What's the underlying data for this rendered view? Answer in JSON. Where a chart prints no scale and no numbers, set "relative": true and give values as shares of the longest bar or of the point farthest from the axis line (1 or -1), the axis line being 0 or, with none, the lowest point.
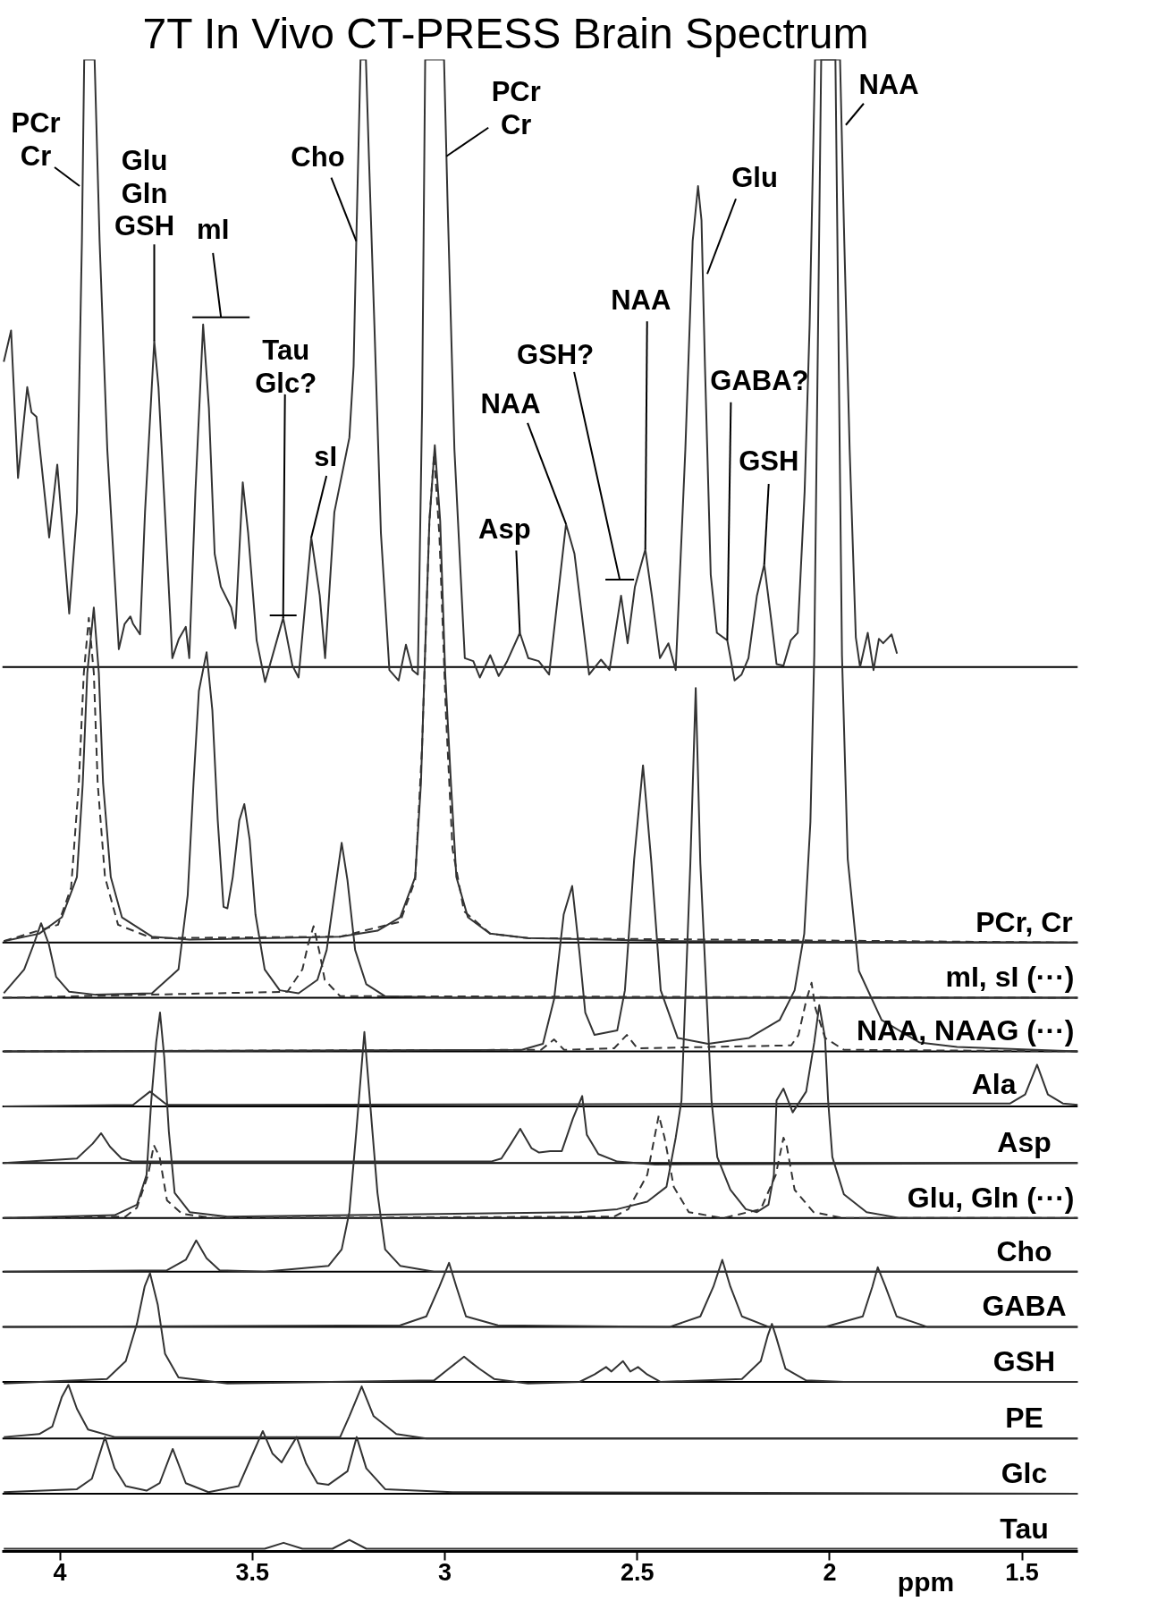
{
  "chart_data": {
    "type": "line",
    "title": "7T In Vivo CT-PRESS Brain Spectrum",
    "xlabel": "ppm",
    "relative": true,
    "xlim": [
      4.15,
      1.355
    ],
    "xticks": [
      4,
      3.5,
      3,
      2.5,
      2,
      1.5
    ],
    "series": [
      {
        "color": "#333333",
        "x": [
          4.146,
          4.127,
          4.109,
          4.085,
          4.074,
          4.061,
          4.028,
          4.007,
          3.976,
          3.956,
          3.943,
          3.937,
          3.91,
          3.897,
          3.877,
          3.847,
          3.832,
          3.817,
          3.81,
          3.792,
          3.779,
          3.755,
          3.744,
          3.73,
          3.708,
          3.691,
          3.673,
          3.664,
          3.648,
          3.628,
          3.613,
          3.598,
          3.582,
          3.555,
          3.544,
          3.525,
          3.511,
          3.489,
          3.467,
          3.42,
          3.396,
          3.38,
          3.347,
          3.325,
          3.311,
          3.287,
          3.248,
          3.237,
          3.23,
          3.219,
          3.205,
          3.197,
          3.183,
          3.166,
          3.144,
          3.12,
          3.101,
          3.084,
          3.07,
          3.059,
          3.051,
          3.002,
          2.993,
          2.975,
          2.948,
          2.926,
          2.909,
          2.882,
          2.86,
          2.838,
          2.805,
          2.783,
          2.756,
          2.729,
          2.685,
          2.663,
          2.625,
          2.594,
          2.572,
          2.542,
          2.525,
          2.506,
          2.479,
          2.462,
          2.441,
          2.419,
          2.4,
          2.375,
          2.356,
          2.342,
          2.333,
          2.324,
          2.309,
          2.293,
          2.266,
          2.247,
          2.229,
          2.211,
          2.189,
          2.17,
          2.153,
          2.138,
          2.12,
          2.101,
          2.083,
          2.065,
          2.052,
          2.038,
          1.973,
          1.962,
          1.948,
          1.932,
          1.921,
          1.901,
          1.886,
          1.872,
          1.861,
          1.839,
          1.825
        ],
        "values": [
          0.797,
          0.818,
          0.719,
          0.78,
          0.763,
          0.76,
          0.679,
          0.728,
          0.628,
          0.696,
          0.878,
          1,
          1,
          0.878,
          0.738,
          0.604,
          0.621,
          0.626,
          0.621,
          0.614,
          0.696,
          0.811,
          0.78,
          0.71,
          0.598,
          0.611,
          0.619,
          0.598,
          0.71,
          0.822,
          0.766,
          0.668,
          0.646,
          0.632,
          0.618,
          0.716,
          0.682,
          0.61,
          0.582,
          0.625,
          0.593,
          0.585,
          0.679,
          0.64,
          0.598,
          0.696,
          0.746,
          0.794,
          0.878,
          1,
          1,
          0.933,
          0.822,
          0.682,
          0.59,
          0.583,
          0.607,
          0.59,
          0.587,
          0.766,
          1,
          1,
          0.906,
          0.738,
          0.598,
          0.596,
          0.585,
          0.6,
          0.586,
          0.596,
          0.615,
          0.598,
          0.596,
          0.587,
          0.688,
          0.668,
          0.587,
          0.597,
          0.59,
          0.64,
          0.608,
          0.646,
          0.671,
          0.64,
          0.598,
          0.608,
          0.59,
          0.738,
          0.878,
          0.915,
          0.892,
          0.794,
          0.654,
          0.615,
          0.61,
          0.583,
          0.587,
          0.598,
          0.64,
          0.661,
          0.626,
          0.594,
          0.593,
          0.61,
          0.615,
          0.71,
          0.822,
          1,
          1,
          0.878,
          0.738,
          0.612,
          0.592,
          0.615,
          0.59,
          0.611,
          0.608,
          0.614,
          0.601
        ]
      },
      {
        "name": "PCr, Cr",
        "color": "#333333",
        "x": [
          4.146,
          4.054,
          3.995,
          3.956,
          3.941,
          3.929,
          3.912,
          3.899,
          3.888,
          3.868,
          3.839,
          3.761,
          3.663,
          3.272,
          3.175,
          3.116,
          3.077,
          3.062,
          3.053,
          3.04,
          3.026,
          3.012,
          2.999,
          2.984,
          2.97,
          2.94,
          2.882,
          2.784,
          2.4,
          1.355
        ],
        "values": [
          0.408,
          0.413,
          0.424,
          0.451,
          0.513,
          0.588,
          0.632,
          0.588,
          0.514,
          0.451,
          0.424,
          0.411,
          0.409,
          0.411,
          0.415,
          0.424,
          0.451,
          0.514,
          0.588,
          0.69,
          0.741,
          0.69,
          0.588,
          0.514,
          0.451,
          0.424,
          0.413,
          0.41,
          0.408,
          0.407
        ]
      },
      {
        "color": "#333333",
        "line_style": "dashed",
        "x": [
          4.146,
          4.005,
          3.971,
          3.951,
          3.938,
          3.925,
          3.912,
          3.902,
          3.883,
          3.849,
          3.761,
          3.272,
          3.116,
          3.077,
          3.059,
          3.04,
          3.028,
          3.014,
          2.997,
          2.98,
          2.95,
          2.882,
          2.784,
          1.355
        ],
        "values": [
          0.408,
          0.419,
          0.444,
          0.514,
          0.588,
          0.625,
          0.588,
          0.514,
          0.451,
          0.419,
          0.41,
          0.411,
          0.421,
          0.449,
          0.539,
          0.69,
          0.735,
          0.68,
          0.56,
          0.47,
          0.428,
          0.413,
          0.41,
          0.407
        ]
      },
      {
        "name": "mI, sI (···)",
        "color": "#333333",
        "x": [
          4.146,
          4.093,
          4.068,
          4.049,
          4.029,
          4.01,
          3.976,
          3.907,
          3.761,
          3.692,
          3.668,
          3.653,
          3.639,
          3.619,
          3.604,
          3.59,
          3.575,
          3.565,
          3.551,
          3.534,
          3.521,
          3.507,
          3.492,
          3.468,
          3.429,
          3.38,
          3.331,
          3.307,
          3.287,
          3.268,
          3.253,
          3.233,
          3.204,
          3.155,
          2.98,
          1.355
        ],
        "values": [
          0.373,
          0.389,
          0.406,
          0.42,
          0.406,
          0.384,
          0.374,
          0.372,
          0.373,
          0.389,
          0.439,
          0.514,
          0.576,
          0.602,
          0.563,
          0.489,
          0.431,
          0.43,
          0.451,
          0.489,
          0.5,
          0.476,
          0.426,
          0.389,
          0.375,
          0.373,
          0.382,
          0.402,
          0.439,
          0.474,
          0.449,
          0.402,
          0.379,
          0.371,
          0.37,
          0.37
        ]
      },
      {
        "color": "#333333",
        "line_style": "dashed",
        "x": [
          4.146,
          3.409,
          3.37,
          3.355,
          3.341,
          3.326,
          3.312,
          3.272,
          1.355
        ],
        "values": [
          0.37,
          0.374,
          0.389,
          0.406,
          0.418,
          0.401,
          0.382,
          0.371,
          0.37
        ]
      },
      {
        "name": "NAA, NAAG (···)",
        "color": "#333333",
        "x": [
          4.146,
          2.8,
          2.745,
          2.716,
          2.691,
          2.669,
          2.65,
          2.635,
          2.611,
          2.552,
          2.532,
          2.508,
          2.485,
          2.464,
          2.439,
          2.395,
          2.316,
          2.209,
          2.13,
          2.091,
          2.066,
          2.05,
          2.04,
          2.022,
          1.985,
          1.968,
          1.953,
          1.924,
          1.865,
          1.767,
          1.669,
          1.355
        ],
        "values": [
          0.334,
          0.335,
          0.339,
          0.369,
          0.426,
          0.445,
          0.4,
          0.36,
          0.345,
          0.348,
          0.375,
          0.463,
          0.526,
          0.463,
          0.375,
          0.343,
          0.339,
          0.343,
          0.355,
          0.375,
          0.413,
          0.488,
          0.6,
          1,
          1,
          0.6,
          0.463,
          0.388,
          0.355,
          0.34,
          0.337,
          0.334
        ]
      },
      {
        "color": "#333333",
        "line_style": "dashed",
        "x": [
          4.146,
          2.75,
          2.716,
          2.69,
          2.56,
          2.527,
          2.5,
          2.1,
          2.081,
          2.061,
          2.047,
          2.037,
          2.012,
          1.963,
          1.355
        ],
        "values": [
          0.334,
          0.335,
          0.342,
          0.335,
          0.336,
          0.345,
          0.336,
          0.338,
          0.345,
          0.368,
          0.38,
          0.363,
          0.343,
          0.335,
          0.334
        ]
      },
      {
        "name": "Ala",
        "color": "#333333",
        "x": [
          4.146,
          3.81,
          3.766,
          3.722,
          1.531,
          1.492,
          1.461,
          1.433,
          1.394,
          1.355
        ],
        "values": [
          0.297,
          0.298,
          0.307,
          0.298,
          0.299,
          0.305,
          0.325,
          0.305,
          0.299,
          0.298
        ]
      },
      {
        "name": "Asp",
        "color": "#333333",
        "x": [
          4.146,
          3.956,
          3.915,
          3.893,
          3.87,
          3.84,
          3.81,
          2.88,
          2.853,
          2.828,
          2.804,
          2.775,
          2.755,
          2.726,
          2.696,
          2.667,
          2.643,
          2.631,
          2.601,
          2.552,
          2.454,
          1.355
        ],
        "values": [
          0.259,
          0.262,
          0.272,
          0.279,
          0.27,
          0.262,
          0.26,
          0.26,
          0.262,
          0.272,
          0.282,
          0.269,
          0.266,
          0.267,
          0.267,
          0.289,
          0.304,
          0.278,
          0.265,
          0.26,
          0.258,
          0.259
        ]
      },
      {
        "name": "Glu, Gln (···)",
        "color": "#333333",
        "x": [
          4.146,
          3.858,
          3.8,
          3.775,
          3.763,
          3.75,
          3.74,
          3.729,
          3.717,
          3.702,
          3.663,
          3.565,
          2.65,
          2.552,
          2.474,
          2.424,
          2.4,
          2.385,
          2.362,
          2.348,
          2.336,
          2.307,
          2.292,
          2.258,
          2.218,
          2.189,
          2.159,
          2.145,
          2.138,
          2.12,
          2.096,
          2.061,
          2.04,
          2.027,
          2.012,
          2.004,
          1.993,
          1.963,
          1.904,
          1.816,
          1.355
        ],
        "values": [
          0.222,
          0.224,
          0.231,
          0.251,
          0.3,
          0.34,
          0.36,
          0.33,
          0.28,
          0.239,
          0.226,
          0.223,
          0.226,
          0.228,
          0.233,
          0.243,
          0.276,
          0.301,
          0.46,
          0.578,
          0.46,
          0.301,
          0.263,
          0.241,
          0.228,
          0.226,
          0.231,
          0.251,
          0.301,
          0.309,
          0.293,
          0.307,
          0.34,
          0.365,
          0.343,
          0.301,
          0.263,
          0.238,
          0.226,
          0.222,
          0.222
        ]
      },
      {
        "color": "#333333",
        "line_style": "dashed",
        "x": [
          4.146,
          3.83,
          3.8,
          3.771,
          3.756,
          3.741,
          3.722,
          3.683,
          3.6,
          2.56,
          2.523,
          2.474,
          2.444,
          2.429,
          2.405,
          2.366,
          2.277,
          2.179,
          2.14,
          2.12,
          2.112,
          2.091,
          2.042,
          1.963,
          1.355
        ],
        "values": [
          0.222,
          0.223,
          0.229,
          0.251,
          0.271,
          0.263,
          0.234,
          0.225,
          0.222,
          0.223,
          0.228,
          0.251,
          0.291,
          0.276,
          0.243,
          0.226,
          0.222,
          0.228,
          0.251,
          0.276,
          0.271,
          0.241,
          0.226,
          0.222,
          0.222
        ]
      },
      {
        "name": "Cho",
        "color": "#333333",
        "x": [
          4.146,
          3.722,
          3.673,
          3.646,
          3.619,
          3.585,
          3.468,
          3.302,
          3.268,
          3.248,
          3.23,
          3.209,
          3.188,
          3.175,
          3.155,
          3.116,
          3.028,
          1.355
        ],
        "values": [
          0.186,
          0.187,
          0.194,
          0.207,
          0.195,
          0.187,
          0.186,
          0.19,
          0.201,
          0.226,
          0.28,
          0.347,
          0.28,
          0.239,
          0.201,
          0.19,
          0.186,
          0.186
        ]
      },
      {
        "name": "GABA",
        "color": "#333333",
        "x": [
          4.146,
          3.116,
          3.048,
          3.014,
          2.989,
          2.97,
          2.945,
          2.862,
          2.415,
          2.336,
          2.302,
          2.279,
          2.258,
          2.228,
          2.159,
          2.012,
          1.914,
          1.889,
          1.875,
          1.855,
          1.826,
          1.747,
          1.355
        ],
        "values": [
          0.149,
          0.15,
          0.156,
          0.176,
          0.192,
          0.176,
          0.156,
          0.15,
          0.149,
          0.156,
          0.176,
          0.194,
          0.176,
          0.156,
          0.149,
          0.149,
          0.156,
          0.176,
          0.189,
          0.176,
          0.156,
          0.149,
          0.149
        ]
      },
      {
        "name": "GSH",
        "color": "#333333",
        "x": [
          4.146,
          3.878,
          3.829,
          3.8,
          3.78,
          3.766,
          3.746,
          3.727,
          3.692,
          3.565,
          3.028,
          2.989,
          2.95,
          2.931,
          2.911,
          2.872,
          2.784,
          2.65,
          2.611,
          2.581,
          2.567,
          2.537,
          2.518,
          2.498,
          2.474,
          2.439,
          2.228,
          2.179,
          2.161,
          2.15,
          2.14,
          2.115,
          2.061,
          1.963,
          1.355
        ],
        "values": [
          0.111,
          0.114,
          0.126,
          0.151,
          0.176,
          0.185,
          0.164,
          0.131,
          0.115,
          0.111,
          0.113,
          0.121,
          0.129,
          0.125,
          0.121,
          0.114,
          0.111,
          0.112,
          0.117,
          0.122,
          0.119,
          0.126,
          0.119,
          0.122,
          0.117,
          0.112,
          0.114,
          0.126,
          0.143,
          0.151,
          0.143,
          0.121,
          0.113,
          0.112,
          0.112
        ]
      },
      {
        "name": "PE",
        "color": "#333333",
        "x": [
          4.146,
          4.054,
          4.02,
          3.995,
          3.978,
          3.956,
          3.927,
          3.858,
          3.272,
          3.248,
          3.216,
          3.185,
          3.126,
          3.048,
          1.355
        ],
        "values": [
          0.075,
          0.077,
          0.082,
          0.102,
          0.11,
          0.094,
          0.08,
          0.075,
          0.075,
          0.089,
          0.109,
          0.089,
          0.077,
          0.074,
          0.074
        ]
      },
      {
        "name": "Glc",
        "color": "#333333",
        "x": [
          4.146,
          3.956,
          3.917,
          3.883,
          3.858,
          3.829,
          3.775,
          3.741,
          3.707,
          3.673,
          3.614,
          3.536,
          3.502,
          3.473,
          3.448,
          3.424,
          3.404,
          3.385,
          3.36,
          3.331,
          3.302,
          3.253,
          3.229,
          3.204,
          3.155,
          2.98,
          1.355
        ],
        "values": [
          0.038,
          0.04,
          0.047,
          0.075,
          0.054,
          0.042,
          0.039,
          0.044,
          0.067,
          0.044,
          0.038,
          0.042,
          0.062,
          0.079,
          0.064,
          0.058,
          0.067,
          0.075,
          0.057,
          0.044,
          0.043,
          0.052,
          0.075,
          0.054,
          0.04,
          0.038,
          0.037
        ]
      },
      {
        "name": "Tau",
        "color": "#333333",
        "x": [
          4.146,
          3.468,
          3.419,
          3.37,
          3.292,
          3.248,
          3.204,
          1.355
        ],
        "values": [
          0,
          0,
          0.004,
          0,
          0,
          0.006,
          0,
          0
        ]
      }
    ],
    "ref_lines": [
      {
        "axis": "y",
        "value": 0.592,
        "color": "#000000"
      },
      {
        "axis": "y",
        "value": 0.407,
        "color": "#000000"
      },
      {
        "axis": "y",
        "value": 0.37,
        "color": "#000000"
      },
      {
        "axis": "y",
        "value": 0.334,
        "color": "#000000"
      },
      {
        "axis": "y",
        "value": 0.297,
        "color": "#000000"
      },
      {
        "axis": "y",
        "value": 0.259,
        "color": "#000000"
      },
      {
        "axis": "y",
        "value": 0.222,
        "color": "#000000"
      },
      {
        "axis": "y",
        "value": 0.186,
        "color": "#000000"
      },
      {
        "axis": "y",
        "value": 0.149,
        "color": "#000000"
      },
      {
        "axis": "y",
        "value": 0.112,
        "color": "#000000"
      },
      {
        "axis": "y",
        "value": 0.074,
        "color": "#000000"
      },
      {
        "axis": "y",
        "value": 0.037,
        "color": "#000000"
      }
    ],
    "annotations": [
      {
        "text": "PCr\nCr",
        "x": 3.949,
        "y": 0.915
      },
      {
        "text": "Glu\nGln\nGSH",
        "x": 3.755,
        "y": 0.811
      },
      {
        "text": "mI",
        "x": 3.628,
        "y": 0.822
      },
      {
        "text": "Tau\nGlc?",
        "x": 3.42,
        "y": 0.625
      },
      {
        "text": "sI",
        "x": 3.347,
        "y": 0.679
      },
      {
        "text": "Cho",
        "x": 3.23,
        "y": 0.878
      },
      {
        "text": "PCr\nCr",
        "x": 2.996,
        "y": 0.935
      },
      {
        "text": "Asp",
        "x": 2.805,
        "y": 0.615
      },
      {
        "text": "NAA",
        "x": 2.685,
        "y": 0.688
      },
      {
        "text": "GSH?",
        "x": 2.506,
        "y": 0.646
      },
      {
        "text": "NAA",
        "x": 2.479,
        "y": 0.671
      },
      {
        "text": "Glu",
        "x": 2.318,
        "y": 0.856
      },
      {
        "text": "GABA?",
        "x": 2.266,
        "y": 0.61
      },
      {
        "text": "GSH",
        "x": 2.17,
        "y": 0.661
      },
      {
        "text": "NAA",
        "x": 1.958,
        "y": 0.956
      }
    ]
  }
}
